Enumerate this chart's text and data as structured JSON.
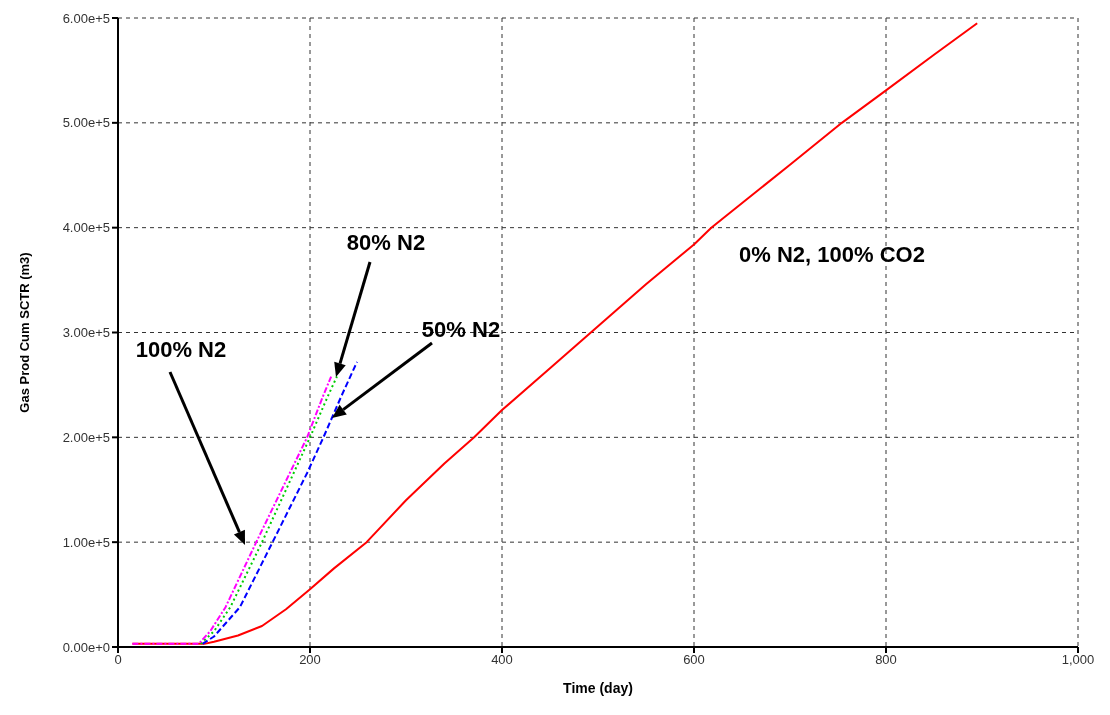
{
  "chart_data": {
    "type": "line",
    "xlabel": "Time (day)",
    "ylabel": "Gas Prod Cum SCTR (m3)",
    "xlim": [
      0,
      1000
    ],
    "xticks": [
      0,
      200,
      400,
      600,
      800,
      {
        "value": 1000,
        "label": "1,000"
      }
    ],
    "ylim": [
      0,
      600000
    ],
    "yticks": [
      {
        "value": 0,
        "label": "0.00e+0"
      },
      {
        "value": 100000,
        "label": "1.00e+5"
      },
      {
        "value": 200000,
        "label": "2.00e+5"
      },
      {
        "value": 300000,
        "label": "3.00e+5"
      },
      {
        "value": 400000,
        "label": "4.00e+5"
      },
      {
        "value": 500000,
        "label": "5.00e+5"
      },
      {
        "value": 600000,
        "label": "6.00e+5"
      }
    ],
    "grid": true,
    "legend": false,
    "marker": "none",
    "series": [
      {
        "color": "#ff0000",
        "line_style": "solid",
        "x": [
          15,
          50,
          90,
          100,
          125,
          150,
          175,
          200,
          225,
          259,
          300,
          340,
          371,
          400,
          450,
          500,
          550,
          600,
          618,
          700,
          754,
          800,
          850,
          895
        ],
        "values": [
          3000,
          3000,
          3000,
          5000,
          11000,
          20000,
          36000,
          55000,
          75000,
          100000,
          140000,
          175000,
          200000,
          226000,
          266000,
          306000,
          346000,
          384000,
          400000,
          460000,
          500000,
          531000,
          565000,
          595000
        ]
      },
      {
        "color": "#0000ff",
        "line_style": "dashed",
        "x": [
          88,
          100,
          127,
          161,
          197,
          214,
          233,
          249
        ],
        "values": [
          3000,
          10000,
          38000,
          100000,
          166000,
          200000,
          240000,
          272000
        ]
      },
      {
        "color": "#00cc00",
        "line_style": "dotted",
        "x": [
          86,
          100,
          117,
          150,
          200,
          218,
          228
        ],
        "values": [
          3000,
          15000,
          38000,
          100000,
          200000,
          238000,
          258000
        ]
      },
      {
        "color": "#ff00ff",
        "line_style": "dashdot",
        "x": [
          15,
          50,
          84,
          96,
          112,
          144,
          197,
          213,
          222
        ],
        "values": [
          3000,
          3000,
          3000,
          15000,
          38000,
          100000,
          200000,
          238000,
          258000
        ]
      }
    ],
    "annotations": [
      "100% N2",
      "80% N2",
      "50% N2",
      "0% N2, 100% CO2"
    ]
  }
}
